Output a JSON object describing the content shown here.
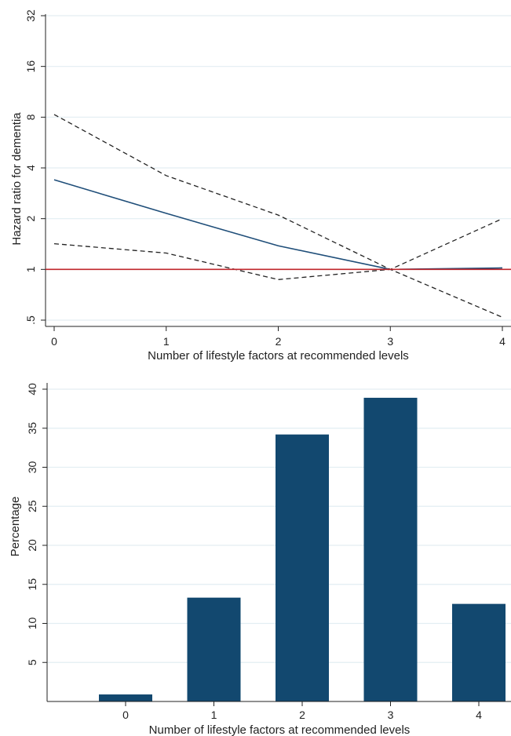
{
  "colors": {
    "grid": "#e3eef2",
    "axis": "#222222",
    "estimate_line": "#1f4e79",
    "ci_line": "#222222",
    "reference_line": "#c0262c",
    "bar": "#12486f"
  },
  "chart_data": [
    {
      "type": "line",
      "xlabel": "Number of lifestyle factors at recommended levels",
      "ylabel": "Hazard ratio for dementia",
      "y_scale": "log2",
      "ylim": [
        0.5,
        32
      ],
      "xlim": [
        0,
        4
      ],
      "x_ticks": [
        "0",
        "1",
        "2",
        "3",
        "4"
      ],
      "y_ticks": [
        {
          "value": 0.5,
          "label": ".5"
        },
        {
          "value": 1,
          "label": "1"
        },
        {
          "value": 2,
          "label": "2"
        },
        {
          "value": 4,
          "label": "4"
        },
        {
          "value": 8,
          "label": "8"
        },
        {
          "value": 16,
          "label": "16"
        },
        {
          "value": 32,
          "label": "32"
        }
      ],
      "grid": true,
      "x": [
        0,
        1,
        2,
        3,
        4
      ],
      "series": [
        {
          "style": "solid",
          "values": [
            3.4,
            2.15,
            1.38,
            1.0,
            1.02
          ]
        },
        {
          "style": "dashed",
          "values": [
            8.3,
            3.6,
            2.1,
            1.0,
            0.52
          ]
        },
        {
          "style": "dashed",
          "values": [
            1.42,
            1.25,
            0.87,
            1.0,
            2.0
          ]
        }
      ],
      "reference_line": {
        "y": 1
      }
    },
    {
      "type": "bar",
      "xlabel": "Number of lifestyle factors at recommended levels",
      "ylabel": "Percentage",
      "ylim": [
        0,
        40
      ],
      "y_ticks": [
        "5",
        "10",
        "15",
        "20",
        "25",
        "30",
        "35",
        "40"
      ],
      "categories": [
        "0",
        "1",
        "2",
        "3",
        "4"
      ],
      "values": [
        0.9,
        13.3,
        34.2,
        38.9,
        12.5
      ],
      "grid": true
    }
  ]
}
